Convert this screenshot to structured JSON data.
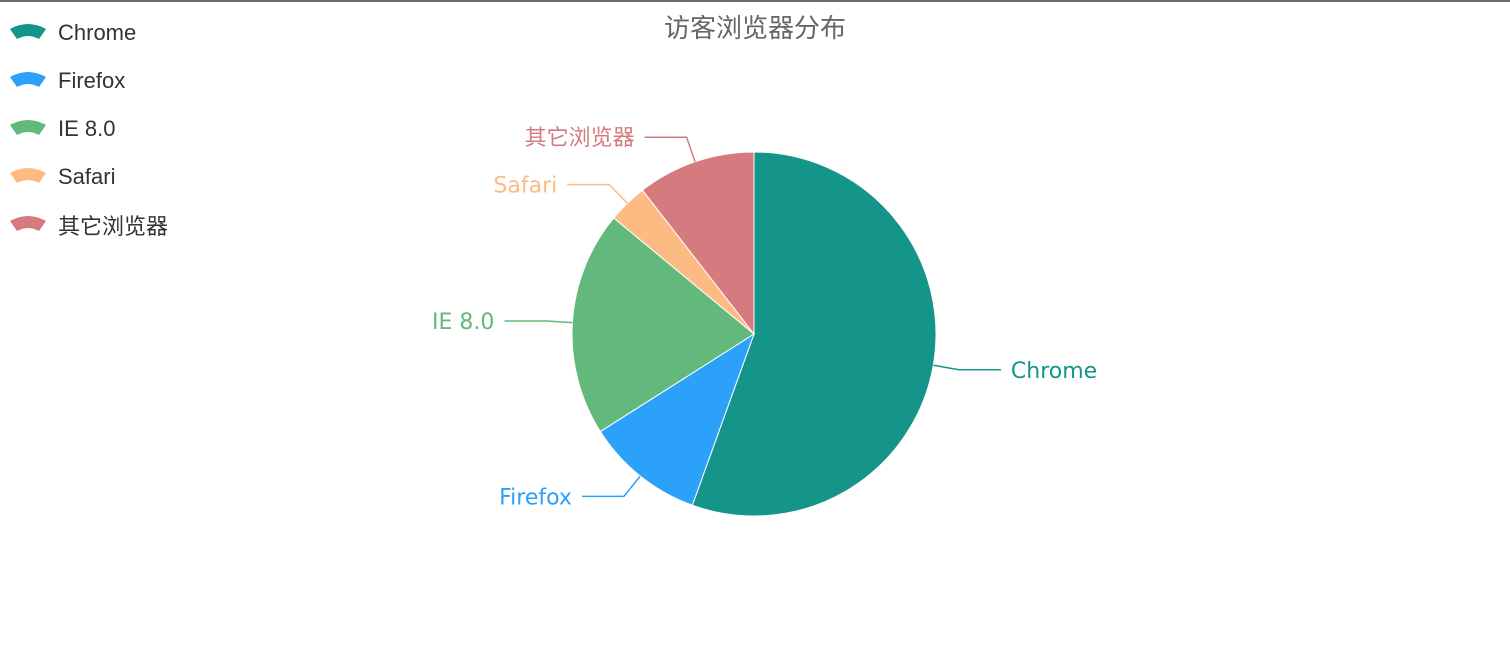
{
  "chart_data": {
    "type": "pie",
    "title": "访客浏览器分布",
    "legend_position": "top-left",
    "slices": [
      {
        "name": "Chrome",
        "value": 55.5,
        "color": "#15958a"
      },
      {
        "name": "Firefox",
        "value": 10.5,
        "color": "#2ca1fa"
      },
      {
        "name": "IE 8.0",
        "value": 20.0,
        "color": "#63b87c"
      },
      {
        "name": "Safari",
        "value": 3.5,
        "color": "#fdbb84"
      },
      {
        "name": "其它浏览器",
        "value": 10.5,
        "color": "#d57b7f"
      }
    ]
  }
}
